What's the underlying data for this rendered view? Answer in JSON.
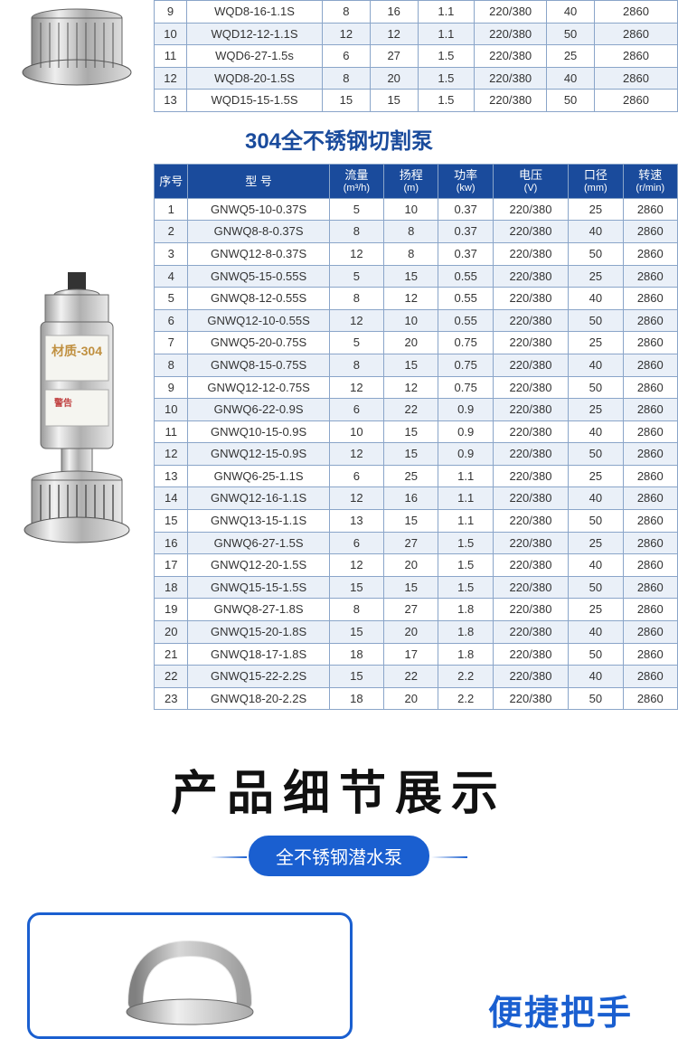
{
  "topTable": {
    "rows": [
      {
        "idx": "9",
        "model": "WQD8-16-1.1S",
        "flow": "8",
        "head": "16",
        "power": "1.1",
        "volt": "220/380",
        "bore": "40",
        "speed": "2860"
      },
      {
        "idx": "10",
        "model": "WQD12-12-1.1S",
        "flow": "12",
        "head": "12",
        "power": "1.1",
        "volt": "220/380",
        "bore": "50",
        "speed": "2860"
      },
      {
        "idx": "11",
        "model": "WQD6-27-1.5s",
        "flow": "6",
        "head": "27",
        "power": "1.5",
        "volt": "220/380",
        "bore": "25",
        "speed": "2860"
      },
      {
        "idx": "12",
        "model": "WQD8-20-1.5S",
        "flow": "8",
        "head": "20",
        "power": "1.5",
        "volt": "220/380",
        "bore": "40",
        "speed": "2860"
      },
      {
        "idx": "13",
        "model": "WQD15-15-1.5S",
        "flow": "15",
        "head": "15",
        "power": "1.5",
        "volt": "220/380",
        "bore": "50",
        "speed": "2860"
      }
    ]
  },
  "sectionTitle": "304全不锈钢切割泵",
  "mainTable": {
    "headers": {
      "idx": "序号",
      "model": "型 号",
      "flow": "流量",
      "flow_unit": "(m³/h)",
      "head": "扬程",
      "head_unit": "(m)",
      "power": "功率",
      "power_unit": "(kw)",
      "volt": "电压",
      "volt_unit": "(V)",
      "bore": "口径",
      "bore_unit": "(mm)",
      "speed": "转速",
      "speed_unit": "(r/min)"
    },
    "rows": [
      {
        "idx": "1",
        "model": "GNWQ5-10-0.37S",
        "flow": "5",
        "head": "10",
        "power": "0.37",
        "volt": "220/380",
        "bore": "25",
        "speed": "2860"
      },
      {
        "idx": "2",
        "model": "GNWQ8-8-0.37S",
        "flow": "8",
        "head": "8",
        "power": "0.37",
        "volt": "220/380",
        "bore": "40",
        "speed": "2860"
      },
      {
        "idx": "3",
        "model": "GNWQ12-8-0.37S",
        "flow": "12",
        "head": "8",
        "power": "0.37",
        "volt": "220/380",
        "bore": "50",
        "speed": "2860"
      },
      {
        "idx": "4",
        "model": "GNWQ5-15-0.55S",
        "flow": "5",
        "head": "15",
        "power": "0.55",
        "volt": "220/380",
        "bore": "25",
        "speed": "2860"
      },
      {
        "idx": "5",
        "model": "GNWQ8-12-0.55S",
        "flow": "8",
        "head": "12",
        "power": "0.55",
        "volt": "220/380",
        "bore": "40",
        "speed": "2860"
      },
      {
        "idx": "6",
        "model": "GNWQ12-10-0.55S",
        "flow": "12",
        "head": "10",
        "power": "0.55",
        "volt": "220/380",
        "bore": "50",
        "speed": "2860"
      },
      {
        "idx": "7",
        "model": "GNWQ5-20-0.75S",
        "flow": "5",
        "head": "20",
        "power": "0.75",
        "volt": "220/380",
        "bore": "25",
        "speed": "2860"
      },
      {
        "idx": "8",
        "model": "GNWQ8-15-0.75S",
        "flow": "8",
        "head": "15",
        "power": "0.75",
        "volt": "220/380",
        "bore": "40",
        "speed": "2860"
      },
      {
        "idx": "9",
        "model": "GNWQ12-12-0.75S",
        "flow": "12",
        "head": "12",
        "power": "0.75",
        "volt": "220/380",
        "bore": "50",
        "speed": "2860"
      },
      {
        "idx": "10",
        "model": "GNWQ6-22-0.9S",
        "flow": "6",
        "head": "22",
        "power": "0.9",
        "volt": "220/380",
        "bore": "25",
        "speed": "2860"
      },
      {
        "idx": "11",
        "model": "GNWQ10-15-0.9S",
        "flow": "10",
        "head": "15",
        "power": "0.9",
        "volt": "220/380",
        "bore": "40",
        "speed": "2860"
      },
      {
        "idx": "12",
        "model": "GNWQ12-15-0.9S",
        "flow": "12",
        "head": "15",
        "power": "0.9",
        "volt": "220/380",
        "bore": "50",
        "speed": "2860"
      },
      {
        "idx": "13",
        "model": "GNWQ6-25-1.1S",
        "flow": "6",
        "head": "25",
        "power": "1.1",
        "volt": "220/380",
        "bore": "25",
        "speed": "2860"
      },
      {
        "idx": "14",
        "model": "GNWQ12-16-1.1S",
        "flow": "12",
        "head": "16",
        "power": "1.1",
        "volt": "220/380",
        "bore": "40",
        "speed": "2860"
      },
      {
        "idx": "15",
        "model": "GNWQ13-15-1.1S",
        "flow": "13",
        "head": "15",
        "power": "1.1",
        "volt": "220/380",
        "bore": "50",
        "speed": "2860"
      },
      {
        "idx": "16",
        "model": "GNWQ6-27-1.5S",
        "flow": "6",
        "head": "27",
        "power": "1.5",
        "volt": "220/380",
        "bore": "25",
        "speed": "2860"
      },
      {
        "idx": "17",
        "model": "GNWQ12-20-1.5S",
        "flow": "12",
        "head": "20",
        "power": "1.5",
        "volt": "220/380",
        "bore": "40",
        "speed": "2860"
      },
      {
        "idx": "18",
        "model": "GNWQ15-15-1.5S",
        "flow": "15",
        "head": "15",
        "power": "1.5",
        "volt": "220/380",
        "bore": "50",
        "speed": "2860"
      },
      {
        "idx": "19",
        "model": "GNWQ8-27-1.8S",
        "flow": "8",
        "head": "27",
        "power": "1.8",
        "volt": "220/380",
        "bore": "25",
        "speed": "2860"
      },
      {
        "idx": "20",
        "model": "GNWQ15-20-1.8S",
        "flow": "15",
        "head": "20",
        "power": "1.8",
        "volt": "220/380",
        "bore": "40",
        "speed": "2860"
      },
      {
        "idx": "21",
        "model": "GNWQ18-17-1.8S",
        "flow": "18",
        "head": "17",
        "power": "1.8",
        "volt": "220/380",
        "bore": "50",
        "speed": "2860"
      },
      {
        "idx": "22",
        "model": "GNWQ15-22-2.2S",
        "flow": "15",
        "head": "22",
        "power": "2.2",
        "volt": "220/380",
        "bore": "40",
        "speed": "2860"
      },
      {
        "idx": "23",
        "model": "GNWQ18-20-2.2S",
        "flow": "18",
        "head": "20",
        "power": "2.2",
        "volt": "220/380",
        "bore": "50",
        "speed": "2860"
      }
    ]
  },
  "detail": {
    "title": "产品细节展示",
    "subtitle": "全不锈钢潜水泵",
    "bottomLabel": "便捷把手"
  },
  "colors": {
    "header_bg": "#1a4b9c",
    "border": "#8aa5c9",
    "alt_row": "#eaf0f8",
    "accent": "#1a5fd0"
  }
}
